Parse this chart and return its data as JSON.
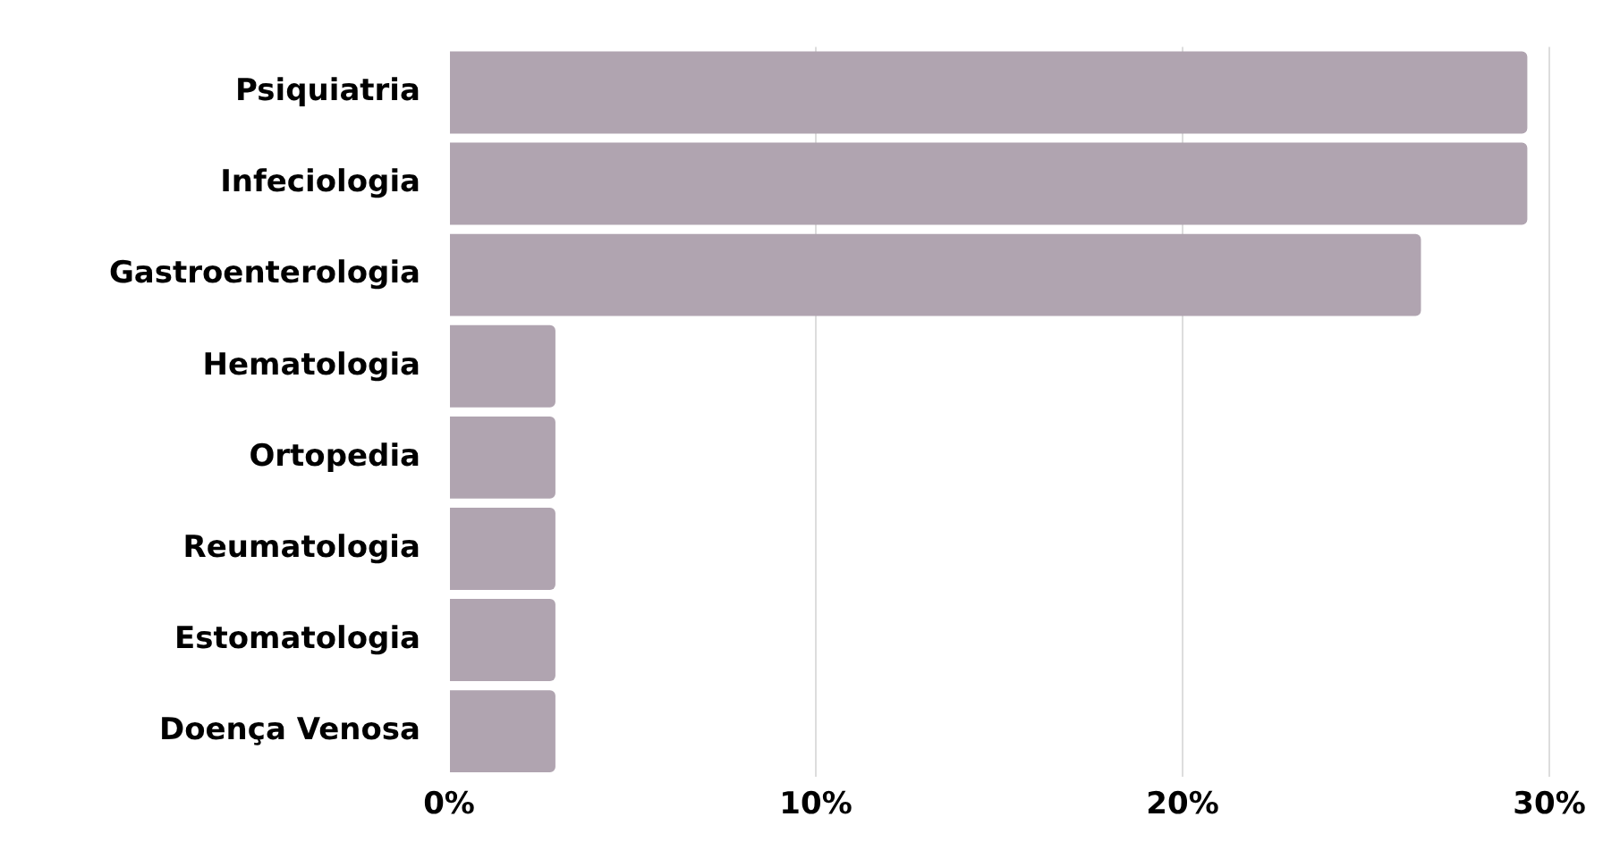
{
  "chart_data": {
    "type": "bar",
    "orientation": "horizontal",
    "categories": [
      "Psiquiatria",
      "Infeciologia",
      "Gastroenterologia",
      "Hematologia",
      "Ortopedia",
      "Reumatologia",
      "Estomatologia",
      "Doença Venosa"
    ],
    "values": [
      29.4,
      29.4,
      26.5,
      2.9,
      2.9,
      2.9,
      2.9,
      2.9
    ],
    "color": "#b0a4b0",
    "xlim": [
      0,
      30
    ],
    "xticks": [
      {
        "value": 0,
        "label": "0%"
      },
      {
        "value": 10,
        "label": "10%"
      },
      {
        "value": 20,
        "label": "20%"
      },
      {
        "value": 30,
        "label": "30%"
      }
    ],
    "grid": "x",
    "legend": false
  }
}
